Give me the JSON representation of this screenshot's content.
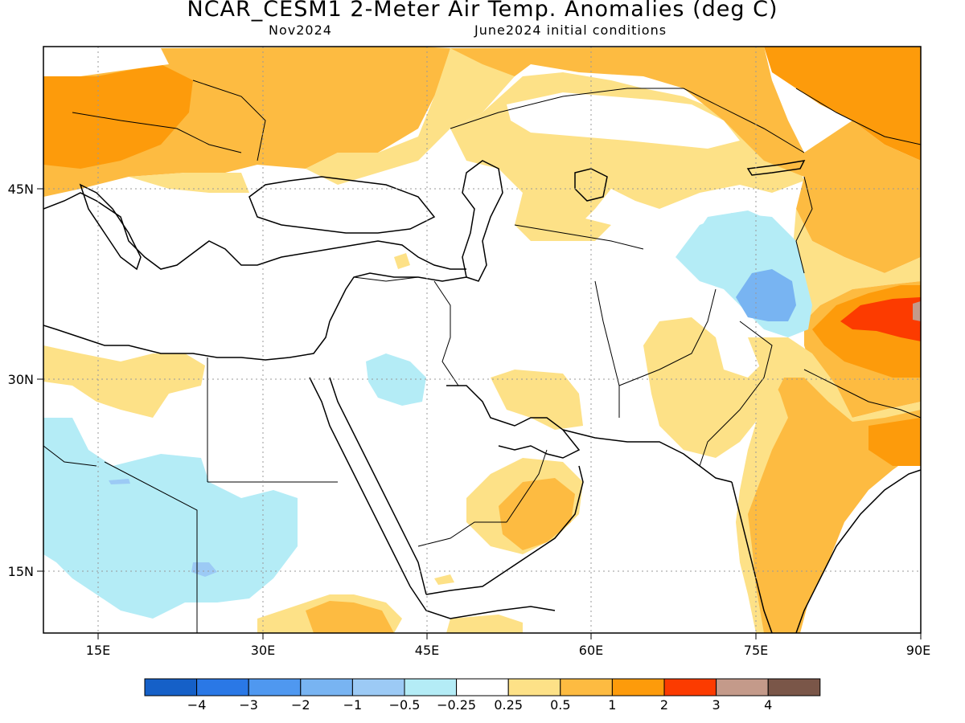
{
  "title": "NCAR_CESM1 2-Meter Air Temp. Anomalies (deg C)",
  "subtitle_left": "Nov2024",
  "subtitle_right": "June2024 initial conditions",
  "lon_ticks": [
    "15E",
    "30E",
    "45E",
    "60E",
    "75E",
    "90E"
  ],
  "lat_ticks": [
    "45N",
    "30N",
    "15N"
  ],
  "colorbar": {
    "colors": [
      "#1560c8",
      "#2a78e6",
      "#4f98f0",
      "#78b4f2",
      "#9ccaf5",
      "#b4ecf6",
      "#ffffff",
      "#fde187",
      "#fdbb41",
      "#fd9b0b",
      "#fc3b00",
      "#c49a8a",
      "#7a5648"
    ],
    "labels": [
      "-4",
      "-3",
      "-2",
      "-1",
      "-0.5",
      "-0.25",
      "0.25",
      "0.5",
      "1",
      "2",
      "3",
      "4"
    ]
  },
  "anomaly_colors": {
    "light_orange": "#fde187",
    "orange": "#fdbb41",
    "dark_orange": "#fd9b0b",
    "red": "#fc3b00",
    "brownish": "#c49a8a",
    "light_cyan": "#b4ecf6",
    "light_blue": "#78b4f2"
  }
}
